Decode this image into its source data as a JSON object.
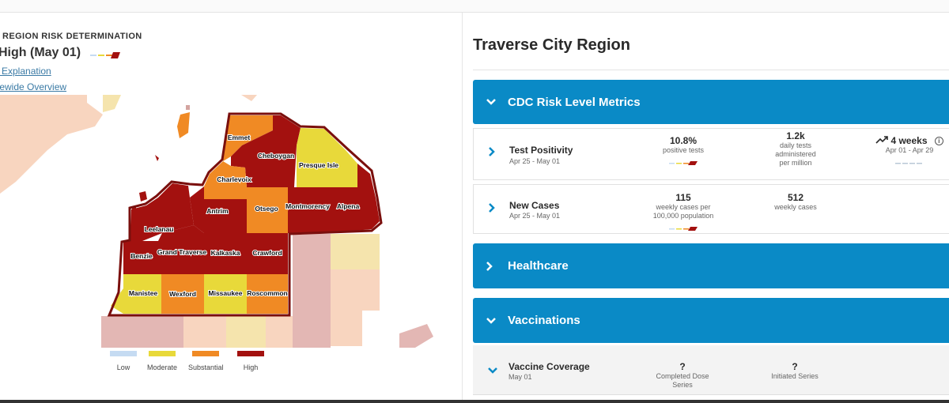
{
  "left": {
    "risk_heading": "Y REGION RISK DETERMINATION",
    "risk_level": "High (May 01)",
    "link_explanation": "l Explanation",
    "link_overview": "tewide Overview",
    "counties": [
      "Emmet",
      "Cheboygan",
      "Presque Isle",
      "Charlevoix",
      "Antrim",
      "Otsego",
      "Montmorency",
      "Alpena",
      "Leelanau",
      "Benzie",
      "Grand Traverse",
      "Kalkaska",
      "Crawford",
      "Manistee",
      "Wexford",
      "Missaukee",
      "Roscommon"
    ],
    "legend": [
      {
        "label": "Low",
        "color": "#c5dbf2"
      },
      {
        "label": "Moderate",
        "color": "#e8d93a"
      },
      {
        "label": "Substantial",
        "color": "#f08a24"
      },
      {
        "label": "High",
        "color": "#a3110f"
      }
    ]
  },
  "right": {
    "region_title": "Traverse City Region",
    "sections": {
      "cdc": "CDC Risk Level Metrics",
      "healthcare": "Healthcare",
      "vaccinations": "Vaccinations"
    },
    "test_positivity": {
      "name": "Test Positivity",
      "date": "Apr 25 - May 01",
      "value1": "10.8%",
      "sub1": "positive tests",
      "value2": "1.2k",
      "sub2": [
        "daily tests",
        "administered",
        "per million"
      ],
      "value3": "4 weeks",
      "sub3": "Apr 01 - Apr 29"
    },
    "new_cases": {
      "name": "New Cases",
      "date": "Apr 25 - May 01",
      "value1": "115",
      "sub1": [
        "weekly cases per",
        "100,000 population"
      ],
      "value2": "512",
      "sub2": "weekly cases"
    },
    "vaccine_coverage": {
      "name": "Vaccine Coverage",
      "date": "May 01",
      "value1": "?",
      "sub1": [
        "Completed Dose",
        "Series"
      ],
      "value2": "?",
      "sub2": "Initiated Series"
    }
  }
}
